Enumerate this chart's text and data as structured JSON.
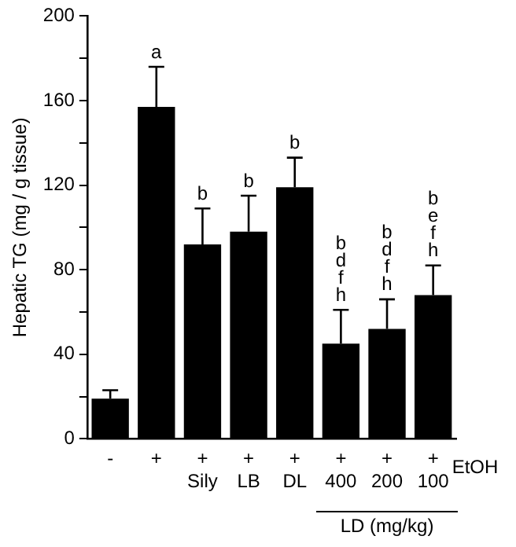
{
  "chart_data": {
    "type": "bar",
    "ylabel": "Hepatic TG (mg / g tissue)",
    "categories": [
      "-",
      "+",
      "+\nSily",
      "+\nLB",
      "+\nDL",
      "+\n400",
      "+\n200",
      "+\n100"
    ],
    "values": [
      19,
      157,
      92,
      98,
      119,
      45,
      52,
      68
    ],
    "errors": [
      [
        19,
        23
      ],
      [
        157,
        176
      ],
      [
        92,
        109
      ],
      [
        98,
        115
      ],
      [
        119,
        133
      ],
      [
        45,
        61
      ],
      [
        52,
        66
      ],
      [
        68,
        82
      ]
    ],
    "color": "#000000",
    "ylim": [
      0,
      200
    ],
    "yticks": [
      0,
      {
        "value": 20,
        "label": null
      },
      40,
      {
        "value": 60,
        "label": null
      },
      80,
      {
        "value": 100,
        "label": null
      },
      120,
      {
        "value": 140,
        "label": null
      },
      160,
      {
        "value": 180,
        "label": null
      },
      200
    ],
    "grid": false,
    "legend": false,
    "annotations": [
      "EtOH",
      "LD (mg/kg)",
      {
        "text": "a",
        "x": "+",
        "y": 176
      },
      {
        "text": "b",
        "x": "+\nSily",
        "y": 109
      },
      {
        "text": "b",
        "x": "+\nLB",
        "y": 115
      },
      {
        "text": "b",
        "x": "+\nDL",
        "y": 133
      },
      {
        "text": "b\nd\nf\nh",
        "x": "+\n400",
        "y": 61
      },
      {
        "text": "b\nd\nf\nh",
        "x": "+\n200",
        "y": 66
      },
      {
        "text": "b\ne\nf\nh",
        "x": "+\n100",
        "y": 82
      }
    ]
  }
}
